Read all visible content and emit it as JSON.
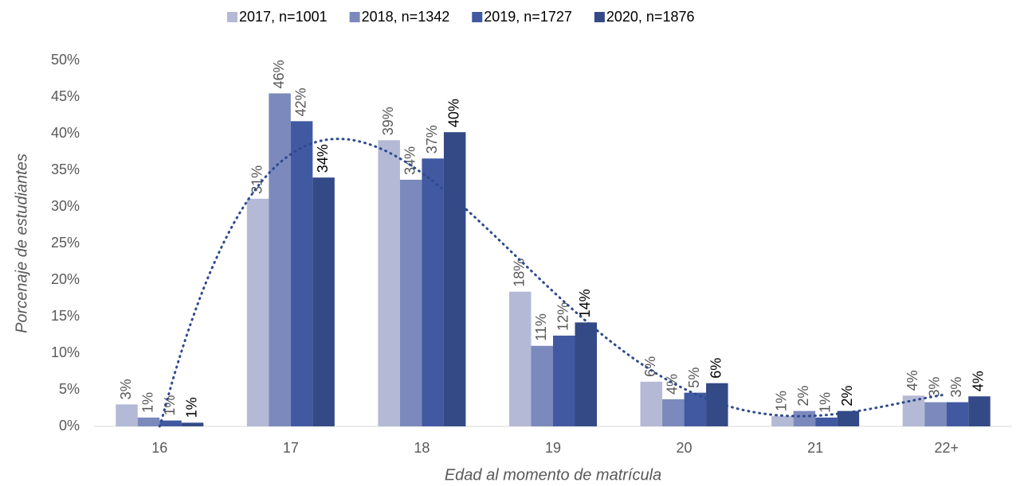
{
  "chart_data": {
    "type": "bar",
    "categories": [
      "16",
      "17",
      "18",
      "19",
      "20",
      "21",
      "22+"
    ],
    "series": [
      {
        "name": "2017, n=1001",
        "color": "#b4b9d6",
        "label_color": "#595959",
        "values": [
          3,
          31.1,
          39.1,
          18.4,
          6.1,
          1.4,
          4.2
        ],
        "value_labels": [
          "3%",
          "31%",
          "39%",
          "18%",
          "6%",
          "1%",
          "4%"
        ]
      },
      {
        "name": "2018, n=1342",
        "color": "#7b89bd",
        "label_color": "#595959",
        "values": [
          1.2,
          45.5,
          33.7,
          11,
          3.7,
          2.1,
          3.3
        ],
        "value_labels": [
          "1%",
          "46%",
          "34%",
          "11%",
          "4%",
          "2%",
          "3%"
        ]
      },
      {
        "name": "2019, n=1727",
        "color": "#4159a0",
        "label_color": "#595959",
        "values": [
          0.8,
          41.7,
          36.6,
          12.4,
          4.6,
          1.2,
          3.3
        ],
        "value_labels": [
          "1%",
          "42%",
          "37%",
          "12%",
          "5%",
          "1%",
          "3%"
        ]
      },
      {
        "name": "2020, n=1876",
        "color": "#344a86",
        "label_color": "#000000",
        "values": [
          0.5,
          34,
          40.2,
          14.2,
          5.9,
          2.1,
          4.1
        ],
        "value_labels": [
          "1%",
          "34%",
          "40%",
          "14%",
          "6%",
          "2%",
          "4%"
        ]
      }
    ],
    "trendline": {
      "series": 3,
      "type": "polynomial",
      "order": 4,
      "color": "#2e4a8c"
    },
    "xlabel": "Edad al momento de matrícula",
    "ylabel": "Porcenaje de estudiantes",
    "ylim": [
      0,
      50
    ],
    "yticks": [
      {
        "value": 0,
        "label": "0%"
      },
      {
        "value": 5,
        "label": "5%"
      },
      {
        "value": 10,
        "label": "10%"
      },
      {
        "value": 15,
        "label": "15%"
      },
      {
        "value": 20,
        "label": "20%"
      },
      {
        "value": 25,
        "label": "25%"
      },
      {
        "value": 30,
        "label": "30%"
      },
      {
        "value": 35,
        "label": "35%"
      },
      {
        "value": 40,
        "label": "40%"
      },
      {
        "value": 45,
        "label": "45%"
      },
      {
        "value": 50,
        "label": "50%"
      }
    ],
    "legend": "top",
    "grid": false
  }
}
